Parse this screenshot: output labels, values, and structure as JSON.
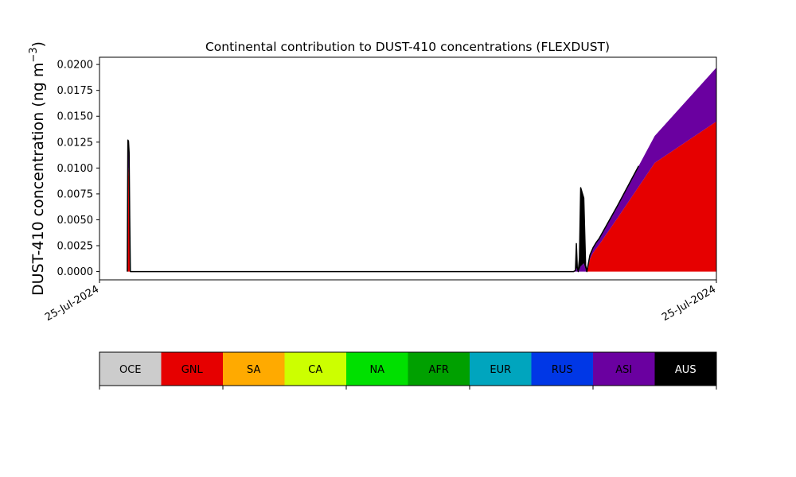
{
  "chart_data": {
    "type": "area",
    "title": "Continental contribution to DUST-410 concentrations (FLEXDUST)",
    "ylabel_main": "DUST-410 concentration (ng m",
    "ylabel_exp": "−3",
    "ylabel_close": ")",
    "xlabel": "",
    "ylim": [
      -0.0008,
      0.0207
    ],
    "yticks": [
      0.0,
      0.0025,
      0.005,
      0.0075,
      0.01,
      0.0125,
      0.015,
      0.0175,
      0.02
    ],
    "ytick_labels": [
      "0.0000",
      "0.0025",
      "0.0050",
      "0.0075",
      "0.0100",
      "0.0125",
      "0.0150",
      "0.0175",
      "0.0200"
    ],
    "xlim": [
      0,
      1
    ],
    "xticks": [
      0,
      1
    ],
    "xtick_labels": [
      "25-Jul-2024",
      "25-Jul-2024"
    ],
    "x": [
      0.0,
      0.045,
      0.046,
      0.047,
      0.048,
      0.049,
      0.05,
      0.051,
      0.052,
      0.7685,
      0.7715,
      0.773,
      0.7745,
      0.776,
      0.778,
      0.78,
      0.785,
      0.788,
      0.79,
      0.795,
      0.8,
      0.805,
      0.81,
      0.84,
      0.874,
      0.9,
      1.0
    ],
    "series": [
      {
        "name": "GNL",
        "color": "#e60000",
        "values": [
          0,
          0,
          0.0103,
          0.0098,
          0.009,
          0.004,
          0,
          0,
          0,
          0,
          0,
          0,
          0,
          0,
          0,
          0,
          0,
          0,
          0,
          0.0012,
          0.0018,
          0.0022,
          0.0026,
          0.0052,
          0.0082,
          0.0105,
          0.0145
        ]
      },
      {
        "name": "ASI",
        "color": "#6a00a0",
        "values": [
          0,
          0,
          0.0024,
          0.0028,
          0.0025,
          0.0012,
          0,
          0,
          0,
          0,
          0.0001,
          0.0003,
          0.0003,
          0,
          0.0002,
          0.0005,
          0.0008,
          0.0002,
          0,
          0.0004,
          0.0005,
          0.0006,
          0.0006,
          0.0012,
          0.002,
          0.0026,
          0.0052
        ]
      },
      {
        "name": "AUS",
        "color": "#000000",
        "values": [
          0,
          0,
          0,
          0,
          0,
          0,
          0,
          0,
          0,
          0,
          0,
          0.0024,
          0.0001,
          0,
          0.0011,
          0.0076,
          0.0063,
          0.0004,
          0,
          0,
          0,
          0,
          0,
          0,
          0,
          0,
          0
        ]
      }
    ],
    "colorbar": {
      "labels": [
        "OCE",
        "GNL",
        "SA",
        "CA",
        "NA",
        "AFR",
        "EUR",
        "RUS",
        "ASI",
        "AUS"
      ],
      "colors": [
        "#cccccc",
        "#e60000",
        "#ffaa00",
        "#ccff00",
        "#00e000",
        "#00a000",
        "#00a5be",
        "#0037e6",
        "#6a00a0",
        "#000000"
      ]
    }
  }
}
